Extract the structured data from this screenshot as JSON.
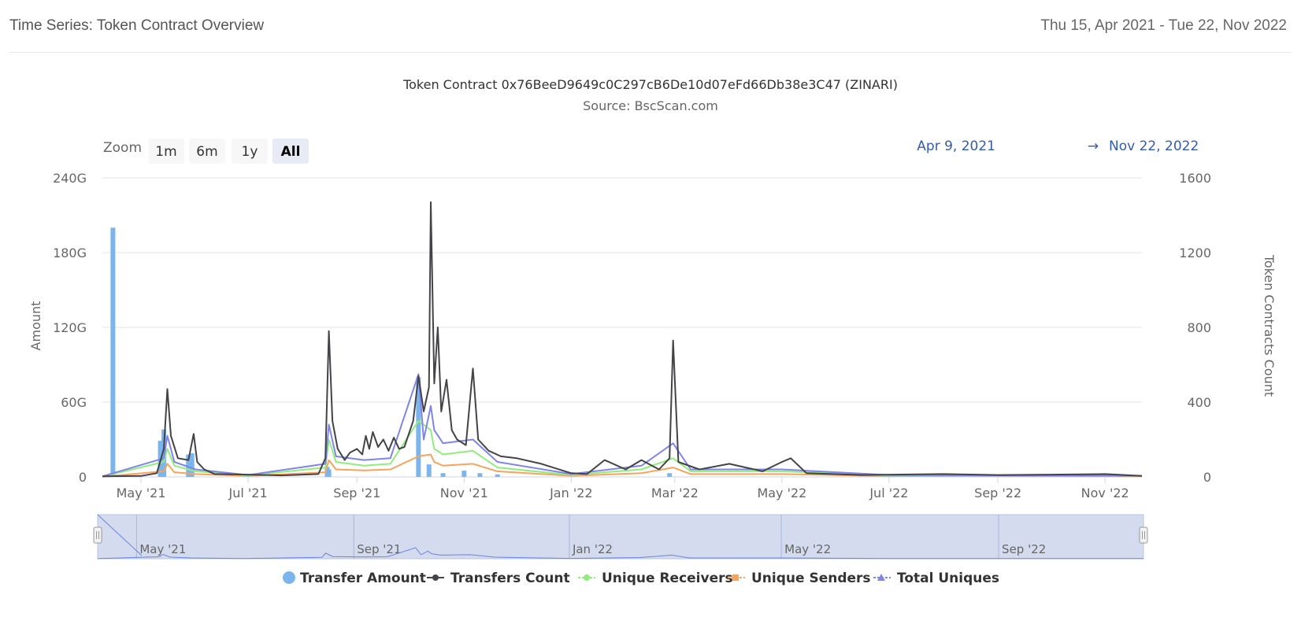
{
  "header": {
    "title": "Time Series: Token Contract Overview",
    "date_range": "Thu 15, Apr 2021 - Tue 22, Nov 2022"
  },
  "rangeSelector": {
    "zoom_label": "Zoom",
    "buttons": [
      "1m",
      "6m",
      "1y",
      "All"
    ],
    "selected": "All",
    "from": "Apr 9, 2021",
    "arrow": "→",
    "to": "Nov 22, 2022"
  },
  "colors": {
    "transfer_amount": "#7cb5ec",
    "transfers_count": "#434348",
    "unique_receivers": "#90ed7d",
    "unique_senders": "#f7a35c",
    "total_uniques": "#8085e9",
    "navigator_bg": "#cdd5ec",
    "navigator_line": "#6a86d8"
  },
  "chart_data": {
    "type": "line",
    "title": "Token Contract 0x76BeeD9649c0C297cB6De10d07eFd66Db38e3C47 (ZINARI)",
    "subtitle": "Source: BscScan.com",
    "x_range": [
      "2021-04-09",
      "2022-11-22"
    ],
    "x_ticks": [
      "May '21",
      "Jul '21",
      "Sep '21",
      "Nov '21",
      "Jan '22",
      "Mar '22",
      "May '22",
      "Jul '22",
      "Sep '22",
      "Nov '22"
    ],
    "y_left": {
      "label": "Amount",
      "ticks": [
        "0",
        "60G",
        "120G",
        "180G",
        "240G"
      ],
      "range": [
        0,
        240
      ]
    },
    "y_right": {
      "label": "Token Contracts Count",
      "ticks": [
        "0",
        "400",
        "800",
        "1200",
        "1600"
      ],
      "range": [
        0,
        1600
      ]
    },
    "legend": [
      "Transfer Amount",
      "Transfers Count",
      "Unique Receivers",
      "Unique Senders",
      "Total Uniques"
    ],
    "legend_position": "bottom",
    "grid": true,
    "navigator_ticks": [
      "May '21",
      "Sep '21",
      "Jan '22",
      "May '22",
      "Sep '22"
    ],
    "series": [
      {
        "name": "Transfer Amount",
        "type": "column",
        "axis": "left",
        "unit": "G",
        "points": [
          [
            "2021-04-15",
            200
          ],
          [
            "2021-05-12",
            29
          ],
          [
            "2021-05-14",
            38
          ],
          [
            "2021-05-28",
            18
          ],
          [
            "2021-05-30",
            19
          ],
          [
            "2021-08-15",
            8
          ],
          [
            "2021-08-16",
            6
          ],
          [
            "2021-10-06",
            80
          ],
          [
            "2021-10-12",
            10
          ],
          [
            "2021-10-20",
            3
          ],
          [
            "2021-11-01",
            5
          ],
          [
            "2021-11-10",
            3
          ],
          [
            "2021-11-20",
            2
          ],
          [
            "2022-02-26",
            3
          ]
        ]
      },
      {
        "name": "Transfers Count",
        "axis": "right",
        "points": [
          [
            "2021-04-09",
            3
          ],
          [
            "2021-05-01",
            5
          ],
          [
            "2021-05-10",
            20
          ],
          [
            "2021-05-14",
            150
          ],
          [
            "2021-05-16",
            470
          ],
          [
            "2021-05-18",
            220
          ],
          [
            "2021-05-22",
            100
          ],
          [
            "2021-05-28",
            90
          ],
          [
            "2021-05-31",
            230
          ],
          [
            "2021-06-02",
            80
          ],
          [
            "2021-06-06",
            40
          ],
          [
            "2021-06-12",
            15
          ],
          [
            "2021-07-01",
            12
          ],
          [
            "2021-07-20",
            8
          ],
          [
            "2021-08-10",
            15
          ],
          [
            "2021-08-14",
            100
          ],
          [
            "2021-08-16",
            780
          ],
          [
            "2021-08-18",
            300
          ],
          [
            "2021-08-21",
            150
          ],
          [
            "2021-08-25",
            90
          ],
          [
            "2021-08-28",
            130
          ],
          [
            "2021-09-01",
            150
          ],
          [
            "2021-09-04",
            120
          ],
          [
            "2021-09-06",
            220
          ],
          [
            "2021-09-08",
            150
          ],
          [
            "2021-09-10",
            240
          ],
          [
            "2021-09-13",
            160
          ],
          [
            "2021-09-16",
            200
          ],
          [
            "2021-09-19",
            140
          ],
          [
            "2021-09-22",
            210
          ],
          [
            "2021-09-25",
            150
          ],
          [
            "2021-09-28",
            160
          ],
          [
            "2021-10-03",
            300
          ],
          [
            "2021-10-06",
            540
          ],
          [
            "2021-10-09",
            350
          ],
          [
            "2021-10-12",
            480
          ],
          [
            "2021-10-13",
            1470
          ],
          [
            "2021-10-15",
            500
          ],
          [
            "2021-10-17",
            800
          ],
          [
            "2021-10-19",
            350
          ],
          [
            "2021-10-22",
            520
          ],
          [
            "2021-10-25",
            250
          ],
          [
            "2021-10-28",
            200
          ],
          [
            "2021-11-02",
            170
          ],
          [
            "2021-11-06",
            580
          ],
          [
            "2021-11-09",
            200
          ],
          [
            "2021-11-15",
            140
          ],
          [
            "2021-11-22",
            110
          ],
          [
            "2021-12-01",
            100
          ],
          [
            "2021-12-15",
            70
          ],
          [
            "2022-01-01",
            20
          ],
          [
            "2022-01-10",
            15
          ],
          [
            "2022-01-20",
            90
          ],
          [
            "2022-02-01",
            40
          ],
          [
            "2022-02-10",
            90
          ],
          [
            "2022-02-20",
            40
          ],
          [
            "2022-02-26",
            100
          ],
          [
            "2022-02-28",
            730
          ],
          [
            "2022-03-03",
            80
          ],
          [
            "2022-03-15",
            40
          ],
          [
            "2022-04-01",
            70
          ],
          [
            "2022-04-20",
            30
          ],
          [
            "2022-05-01",
            80
          ],
          [
            "2022-05-06",
            100
          ],
          [
            "2022-05-15",
            20
          ],
          [
            "2022-06-15",
            10
          ],
          [
            "2022-08-01",
            15
          ],
          [
            "2022-09-01",
            10
          ],
          [
            "2022-10-01",
            12
          ],
          [
            "2022-11-01",
            15
          ],
          [
            "2022-11-22",
            5
          ]
        ]
      },
      {
        "name": "Unique Receivers",
        "axis": "right",
        "points": [
          [
            "2021-04-09",
            2
          ],
          [
            "2021-05-14",
            80
          ],
          [
            "2021-05-16",
            150
          ],
          [
            "2021-05-20",
            60
          ],
          [
            "2021-06-01",
            30
          ],
          [
            "2021-07-01",
            8
          ],
          [
            "2021-08-14",
            50
          ],
          [
            "2021-08-16",
            200
          ],
          [
            "2021-08-20",
            80
          ],
          [
            "2021-09-05",
            60
          ],
          [
            "2021-09-20",
            70
          ],
          [
            "2021-10-06",
            300
          ],
          [
            "2021-10-13",
            250
          ],
          [
            "2021-10-15",
            150
          ],
          [
            "2021-10-20",
            120
          ],
          [
            "2021-11-06",
            140
          ],
          [
            "2021-11-20",
            50
          ],
          [
            "2022-01-01",
            10
          ],
          [
            "2022-02-10",
            40
          ],
          [
            "2022-02-28",
            100
          ],
          [
            "2022-03-10",
            30
          ],
          [
            "2022-05-01",
            30
          ],
          [
            "2022-07-01",
            8
          ],
          [
            "2022-11-22",
            5
          ]
        ]
      },
      {
        "name": "Unique Senders",
        "axis": "right",
        "points": [
          [
            "2021-04-09",
            1
          ],
          [
            "2021-05-14",
            30
          ],
          [
            "2021-05-16",
            70
          ],
          [
            "2021-05-20",
            25
          ],
          [
            "2021-06-01",
            15
          ],
          [
            "2021-07-01",
            5
          ],
          [
            "2021-08-14",
            25
          ],
          [
            "2021-08-16",
            90
          ],
          [
            "2021-08-20",
            40
          ],
          [
            "2021-09-05",
            35
          ],
          [
            "2021-09-20",
            40
          ],
          [
            "2021-10-06",
            110
          ],
          [
            "2021-10-13",
            120
          ],
          [
            "2021-10-15",
            80
          ],
          [
            "2021-10-20",
            60
          ],
          [
            "2021-11-06",
            70
          ],
          [
            "2021-11-20",
            30
          ],
          [
            "2022-01-01",
            6
          ],
          [
            "2022-02-10",
            20
          ],
          [
            "2022-02-28",
            50
          ],
          [
            "2022-03-10",
            15
          ],
          [
            "2022-05-01",
            15
          ],
          [
            "2022-07-01",
            4
          ],
          [
            "2022-11-22",
            3
          ]
        ]
      },
      {
        "name": "Total Uniques",
        "axis": "right",
        "points": [
          [
            "2021-04-09",
            3
          ],
          [
            "2021-05-14",
            100
          ],
          [
            "2021-05-16",
            220
          ],
          [
            "2021-05-20",
            80
          ],
          [
            "2021-06-01",
            40
          ],
          [
            "2021-07-01",
            10
          ],
          [
            "2021-08-14",
            70
          ],
          [
            "2021-08-16",
            280
          ],
          [
            "2021-08-20",
            110
          ],
          [
            "2021-09-05",
            90
          ],
          [
            "2021-09-20",
            100
          ],
          [
            "2021-10-06",
            550
          ],
          [
            "2021-10-09",
            200
          ],
          [
            "2021-10-13",
            380
          ],
          [
            "2021-10-15",
            250
          ],
          [
            "2021-10-20",
            180
          ],
          [
            "2021-11-06",
            200
          ],
          [
            "2021-11-20",
            80
          ],
          [
            "2022-01-01",
            15
          ],
          [
            "2022-02-10",
            60
          ],
          [
            "2022-02-28",
            180
          ],
          [
            "2022-03-10",
            40
          ],
          [
            "2022-05-01",
            40
          ],
          [
            "2022-07-01",
            10
          ],
          [
            "2022-11-22",
            6
          ]
        ]
      }
    ]
  }
}
